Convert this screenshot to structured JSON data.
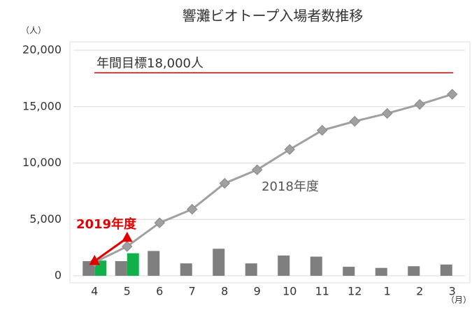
{
  "chart_data": {
    "type": "combo",
    "title": "響灘ビオトープ入場者数推移",
    "y_unit": "（人）",
    "x_unit": "（月）",
    "categories": [
      "4",
      "5",
      "6",
      "7",
      "8",
      "9",
      "10",
      "11",
      "12",
      "1",
      "2",
      "3"
    ],
    "series": [
      {
        "kind": "bar",
        "color": "#7f7f7f",
        "values": [
          1300,
          1300,
          2200,
          1100,
          2400,
          1100,
          1800,
          1700,
          800,
          700,
          850,
          1000
        ]
      },
      {
        "kind": "bar",
        "color": "#12b04a",
        "values": [
          1350,
          2000,
          null,
          null,
          null,
          null,
          null,
          null,
          null,
          null,
          null,
          null
        ]
      },
      {
        "kind": "line",
        "name": "2018年度",
        "color": "#a0a0a0",
        "marker": "diamond",
        "values": [
          1200,
          2600,
          4700,
          5900,
          8200,
          9400,
          11200,
          12900,
          13700,
          14400,
          15200,
          16100
        ]
      },
      {
        "kind": "line",
        "name": "2019年度",
        "color": "#e00000",
        "marker": "triangle",
        "values": [
          1300,
          3350,
          null,
          null,
          null,
          null,
          null,
          null,
          null,
          null,
          null,
          null
        ]
      }
    ],
    "target": {
      "value": 18000,
      "label": "年間目標18,000人",
      "color": "#e00000"
    },
    "ylim": [
      0,
      20000
    ],
    "yticks": [
      0,
      {
        "value": 5000,
        "label": "5,000"
      },
      {
        "value": 10000,
        "label": "10,000"
      },
      {
        "value": 15000,
        "label": "15,000"
      },
      {
        "value": 20000,
        "label": "20,000"
      }
    ],
    "grid": true
  }
}
